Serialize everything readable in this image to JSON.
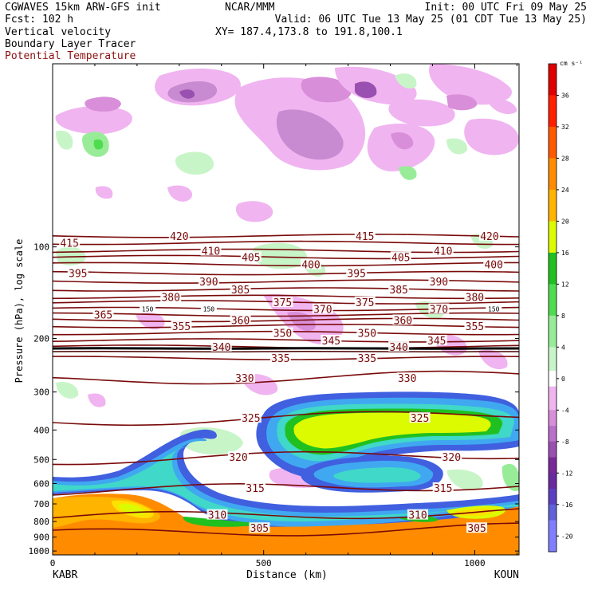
{
  "header": {
    "line1": "CGWAVES 15km ARW-GFS init",
    "line2": "Fcst:  102 h",
    "line3": "Vertical velocity",
    "line4": "Boundary Layer Tracer",
    "line5": "Potential Temperature",
    "center1": "NCAR/MMM",
    "init": "Init: 00 UTC Fri 09 May 25",
    "valid": "Valid: 06 UTC Tue 13 May 25 (01 CDT Tue 13 May 25)",
    "xy": "XY= 187.4,173.8 to 191.8,100.1"
  },
  "colors": {
    "theta": "#7a0a0a",
    "tracer": "#000000",
    "vel_pos": [
      "#ffffff",
      "#c8f5c8",
      "#98ec98",
      "#50dc50",
      "#20c020",
      "#dcfa00",
      "#ffe000",
      "#ffb400",
      "#ff8c00",
      "#ff5a00",
      "#ff2000",
      "#e00000"
    ],
    "vel_neg": [
      "#ffffff",
      "#f0b4f0",
      "#d88ed8",
      "#b870c8",
      "#9a50b0",
      "#7a2a98",
      "#6a2aa0",
      "#6060d8",
      "#8080ff"
    ]
  },
  "chart_data": {
    "type": "cross-section",
    "title": "Vertical velocity / Boundary Layer Tracer / Potential Temperature",
    "xlabel": "Distance (km)",
    "ylabel": "Pressure (hPa), log scale",
    "x_ticks": [
      0,
      500,
      1000
    ],
    "xlim": [
      0,
      1105
    ],
    "y_ticks": [
      100,
      200,
      300,
      400,
      500,
      600,
      700,
      800,
      900,
      1000
    ],
    "ylim": [
      1030,
      25
    ],
    "y_scale": "log",
    "left_label": "KABR",
    "right_label": "KOUN",
    "colorbar": {
      "unit": "cm s⁻¹",
      "labels": [
        36,
        32,
        28,
        24,
        20,
        16,
        12,
        8,
        4,
        0,
        -4,
        -8,
        -12,
        -16,
        -20
      ]
    },
    "theta_contours": [
      {
        "value": 420,
        "p": 92
      },
      {
        "value": 415,
        "p": 97
      },
      {
        "value": 410,
        "p": 103
      },
      {
        "value": 405,
        "p": 108
      },
      {
        "value": 400,
        "p": 114
      },
      {
        "value": 395,
        "p": 122
      },
      {
        "value": 390,
        "p": 130
      },
      {
        "value": 385,
        "p": 138
      },
      {
        "value": 380,
        "p": 146
      },
      {
        "value": 375,
        "p": 152
      },
      {
        "value": 370,
        "p": 160
      },
      {
        "value": 365,
        "p": 167
      },
      {
        "value": 360,
        "p": 174
      },
      {
        "value": 355,
        "p": 182
      },
      {
        "value": 350,
        "p": 192
      },
      {
        "value": 345,
        "p": 203
      },
      {
        "value": 340,
        "p": 213
      },
      {
        "value": 335,
        "p": 232
      },
      {
        "value": 330,
        "p": 270
      },
      {
        "value": 325,
        "p": 365
      },
      {
        "value": 320,
        "p": 490
      },
      {
        "value": 315,
        "p": 620
      },
      {
        "value": 310,
        "p": 760
      },
      {
        "value": 305,
        "p": 860
      }
    ],
    "theta_labels": [
      {
        "text": "415",
        "x": 40,
        "p": 97
      },
      {
        "text": "420",
        "x": 300,
        "p": 92
      },
      {
        "text": "410",
        "x": 375,
        "p": 103
      },
      {
        "text": "405",
        "x": 470,
        "p": 108
      },
      {
        "text": "400",
        "x": 612,
        "p": 114
      },
      {
        "text": "395",
        "x": 60,
        "p": 122
      },
      {
        "text": "390",
        "x": 370,
        "p": 130
      },
      {
        "text": "385",
        "x": 445,
        "p": 138
      },
      {
        "text": "380",
        "x": 280,
        "p": 146
      },
      {
        "text": "375",
        "x": 545,
        "p": 152
      },
      {
        "text": "370",
        "x": 640,
        "p": 160
      },
      {
        "text": "365",
        "x": 120,
        "p": 167
      },
      {
        "text": "360",
        "x": 445,
        "p": 174
      },
      {
        "text": "355",
        "x": 305,
        "p": 182
      },
      {
        "text": "350",
        "x": 545,
        "p": 192
      },
      {
        "text": "345",
        "x": 660,
        "p": 203
      },
      {
        "text": "340",
        "x": 400,
        "p": 213
      },
      {
        "text": "335",
        "x": 540,
        "p": 232
      },
      {
        "text": "330",
        "x": 455,
        "p": 270
      },
      {
        "text": "325",
        "x": 470,
        "p": 365
      },
      {
        "text": "320",
        "x": 440,
        "p": 490
      },
      {
        "text": "315",
        "x": 480,
        "p": 620
      },
      {
        "text": "310",
        "x": 390,
        "p": 760
      },
      {
        "text": "305",
        "x": 490,
        "p": 840
      },
      {
        "text": "415",
        "x": 740,
        "p": 92
      },
      {
        "text": "405",
        "x": 825,
        "p": 108
      },
      {
        "text": "410",
        "x": 925,
        "p": 103
      },
      {
        "text": "420",
        "x": 1035,
        "p": 92
      },
      {
        "text": "400",
        "x": 1045,
        "p": 114
      },
      {
        "text": "395",
        "x": 720,
        "p": 122
      },
      {
        "text": "390",
        "x": 915,
        "p": 130
      },
      {
        "text": "385",
        "x": 820,
        "p": 138
      },
      {
        "text": "380",
        "x": 1000,
        "p": 146
      },
      {
        "text": "375",
        "x": 740,
        "p": 152
      },
      {
        "text": "370",
        "x": 915,
        "p": 160
      },
      {
        "text": "360",
        "x": 830,
        "p": 174
      },
      {
        "text": "355",
        "x": 1000,
        "p": 182
      },
      {
        "text": "350",
        "x": 745,
        "p": 192
      },
      {
        "text": "345",
        "x": 910,
        "p": 203
      },
      {
        "text": "340",
        "x": 820,
        "p": 213
      },
      {
        "text": "335",
        "x": 745,
        "p": 232
      },
      {
        "text": "330",
        "x": 840,
        "p": 270
      },
      {
        "text": "325",
        "x": 870,
        "p": 365
      },
      {
        "text": "320",
        "x": 945,
        "p": 490
      },
      {
        "text": "315",
        "x": 925,
        "p": 620
      },
      {
        "text": "310",
        "x": 865,
        "p": 760
      },
      {
        "text": "305",
        "x": 1005,
        "p": 840
      }
    ],
    "tracer_labels": [
      {
        "text": "150",
        "x": 225,
        "p": 160
      },
      {
        "text": "150",
        "x": 370,
        "p": 160
      },
      {
        "text": "150",
        "x": 1045,
        "p": 160
      }
    ]
  }
}
